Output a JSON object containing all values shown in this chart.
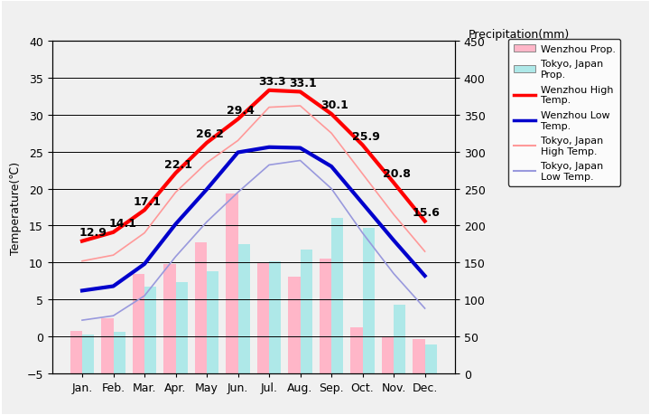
{
  "months": [
    "Jan.",
    "Feb.",
    "Mar.",
    "Apr.",
    "May",
    "Jun.",
    "Jul.",
    "Aug.",
    "Sep.",
    "Oct.",
    "Nov.",
    "Dec."
  ],
  "wenzhou_high": [
    12.9,
    14.1,
    17.1,
    22.1,
    26.2,
    29.4,
    33.3,
    33.1,
    30.1,
    25.9,
    20.8,
    15.6
  ],
  "wenzhou_low": [
    6.2,
    6.8,
    9.8,
    15.2,
    19.9,
    24.9,
    25.6,
    25.5,
    23.0,
    18.0,
    13.0,
    8.2
  ],
  "tokyo_high": [
    10.2,
    11.0,
    14.0,
    19.5,
    23.5,
    26.5,
    31.0,
    31.2,
    27.5,
    22.0,
    16.5,
    11.5
  ],
  "tokyo_low": [
    2.2,
    2.8,
    5.5,
    10.8,
    15.5,
    19.5,
    23.2,
    23.8,
    20.0,
    14.0,
    8.5,
    3.8
  ],
  "wenzhou_prcp_mm": [
    58,
    75,
    135,
    148,
    177,
    243,
    149,
    131,
    155,
    62,
    50,
    46
  ],
  "tokyo_prcp_mm": [
    52,
    56,
    117,
    124,
    138,
    175,
    152,
    168,
    210,
    197,
    93,
    39
  ],
  "wenzhou_high_labels": [
    "12.9",
    "14.1",
    "17.1",
    "22.1",
    "26.2",
    "29.4",
    "33.3",
    "33.1",
    "30.1",
    "25.9",
    "20.8",
    "15.6"
  ],
  "ylim_temp": [
    -5,
    40
  ],
  "ylim_prcp": [
    0,
    450
  ],
  "temp_yticks": [
    -5,
    0,
    5,
    10,
    15,
    20,
    25,
    30,
    35,
    40
  ],
  "prcp_yticks": [
    0,
    50,
    100,
    150,
    200,
    250,
    300,
    350,
    400,
    450
  ],
  "ylabel_left": "Temperature(℃)",
  "ylabel_right": "Precipitation(mm)",
  "outer_bg_color": "#f0f0f0",
  "plot_bg_color": "#c8c8c8",
  "wenzhou_high_color": "#ff0000",
  "wenzhou_low_color": "#0000cc",
  "tokyo_high_color": "#ff9999",
  "tokyo_low_color": "#9999dd",
  "wenzhou_prcp_color": "#ffb6c8",
  "tokyo_prcp_color": "#aee8e8",
  "grid_color": "#000000",
  "label_fontsize": 9,
  "tick_fontsize": 9,
  "legend_fontsize": 8,
  "annot_fontsize": 9
}
